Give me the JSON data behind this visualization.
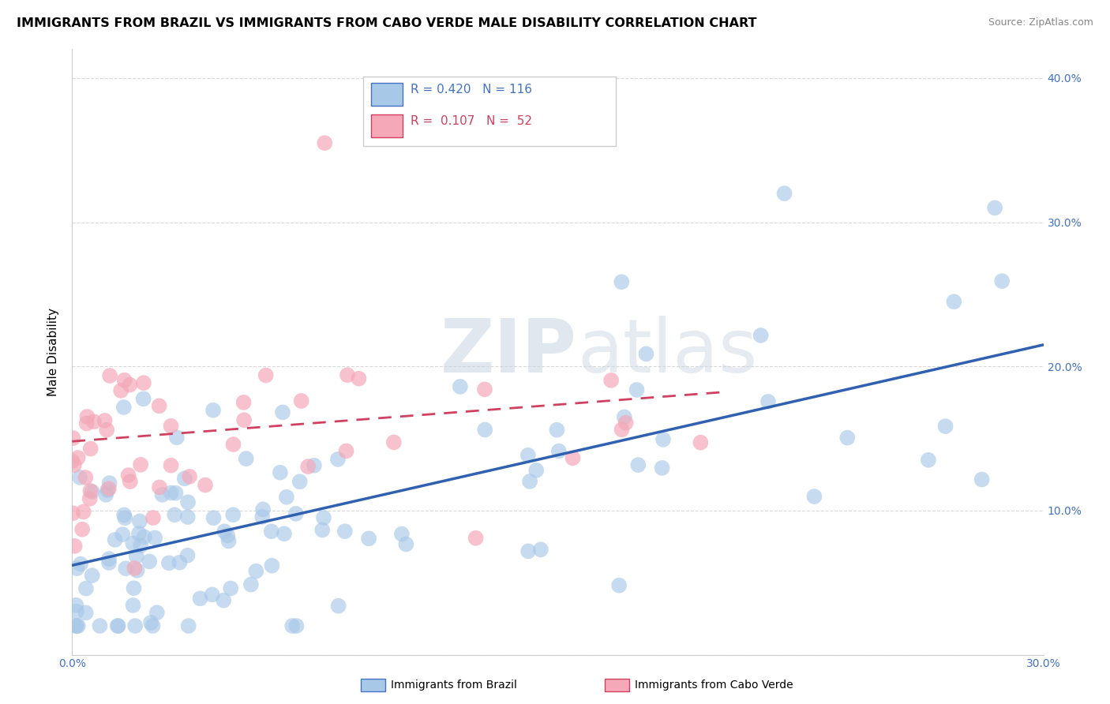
{
  "title": "IMMIGRANTS FROM BRAZIL VS IMMIGRANTS FROM CABO VERDE MALE DISABILITY CORRELATION CHART",
  "source": "Source: ZipAtlas.com",
  "ylabel": "Male Disability",
  "xlim": [
    0.0,
    0.3
  ],
  "ylim": [
    0.0,
    0.42
  ],
  "xticks": [
    0.0,
    0.05,
    0.1,
    0.15,
    0.2,
    0.25,
    0.3
  ],
  "yticks": [
    0.0,
    0.1,
    0.2,
    0.3,
    0.4
  ],
  "ytick_labels_right": [
    "",
    "10.0%",
    "20.0%",
    "30.0%",
    "40.0%"
  ],
  "xtick_labels": [
    "0.0%",
    "",
    "",
    "",
    "",
    "",
    "30.0%"
  ],
  "series1_color": "#a8c8e8",
  "series2_color": "#f4a8b8",
  "line1_color": "#3060b0",
  "line2_color": "#d04060",
  "watermark_zip": "ZIP",
  "watermark_atlas": "atlas",
  "grid_color": "#d8d8d8",
  "background_color": "#ffffff",
  "title_fontsize": 11.5,
  "tick_fontsize": 10,
  "tick_color": "#4472c4",
  "legend_text_color1": "#4472c4",
  "legend_text_color2": "#d04060",
  "legend_box_color1": "#a8c8e8",
  "legend_box_color2": "#f4a8b8",
  "legend_box_edge1": "#4472c4",
  "legend_box_edge2": "#d04060",
  "brazil_line_x": [
    0.0,
    0.3
  ],
  "brazil_line_y": [
    0.062,
    0.215
  ],
  "caboverde_line_x": [
    0.0,
    0.2
  ],
  "caboverde_line_y": [
    0.148,
    0.182
  ]
}
